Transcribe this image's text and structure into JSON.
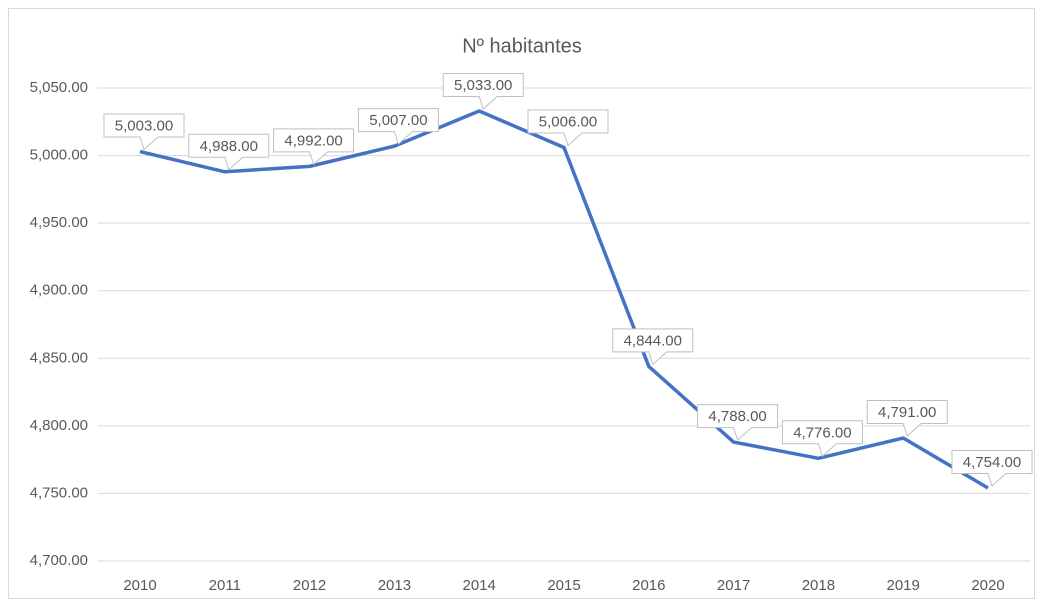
{
  "chart_data": {
    "type": "line",
    "title": "Nº habitantes",
    "categories": [
      "2010",
      "2011",
      "2012",
      "2013",
      "2014",
      "2015",
      "2016",
      "2017",
      "2018",
      "2019",
      "2020"
    ],
    "series": [
      {
        "name": "Nº habitantes",
        "color": "#4472c4",
        "values": [
          5003,
          4988,
          4992,
          5007,
          5033,
          5006,
          4844,
          4788,
          4776,
          4791,
          4754
        ],
        "value_labels": [
          "5,003.00",
          "4,988.00",
          "4,992.00",
          "5,007.00",
          "5,033.00",
          "5,006.00",
          "4,844.00",
          "4,788.00",
          "4,776.00",
          "4,791.00",
          "4,754.00"
        ]
      }
    ],
    "ylim": [
      4700,
      5050
    ],
    "yticks": [
      {
        "value": 4700,
        "label": "4,700.00"
      },
      {
        "value": 4750,
        "label": "4,750.00"
      },
      {
        "value": 4800,
        "label": "4,800.00"
      },
      {
        "value": 4850,
        "label": "4,850.00"
      },
      {
        "value": 4900,
        "label": "4,900.00"
      },
      {
        "value": 4950,
        "label": "4,950.00"
      },
      {
        "value": 5000,
        "label": "5,000.00"
      },
      {
        "value": 5050,
        "label": "5,050.00"
      }
    ],
    "grid": true
  }
}
